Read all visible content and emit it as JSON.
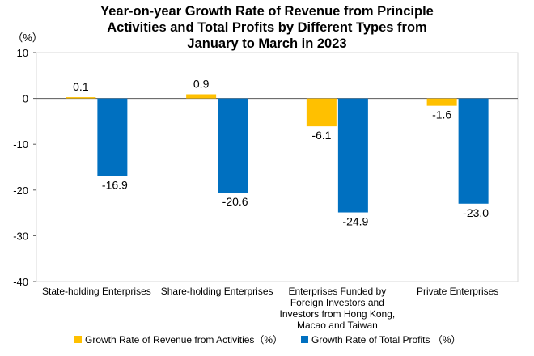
{
  "chart_data": {
    "type": "bar",
    "title_lines": [
      "Year-on-year Growth Rate of Revenue from Principle",
      "Activities and Total Profits by Different Types from",
      "January to March in 2023"
    ],
    "unit_label": "（%）",
    "categories": [
      [
        "State-holding Enterprises"
      ],
      [
        "Share-holding Enterprises"
      ],
      [
        "Enterprises Funded by",
        "Foreign Investors and",
        "Investors from Hong Kong,",
        "Macao and Taiwan"
      ],
      [
        "Private Enterprises"
      ]
    ],
    "series": [
      {
        "name": "Growth Rate of Revenue from Activities（%）",
        "values": [
          0.1,
          0.9,
          -6.1,
          -1.6
        ],
        "color": "#FFC000"
      },
      {
        "name": "Growth Rate of Total Profits （%）",
        "values": [
          -16.9,
          -20.6,
          -24.9,
          -23.0
        ],
        "color": "#0070C0"
      }
    ],
    "value_labels": [
      [
        "0.1",
        "0.9",
        "-6.1",
        "-1.6"
      ],
      [
        "-16.9",
        "-20.6",
        "-24.9",
        "-23.0"
      ]
    ],
    "ylim": [
      -40,
      10
    ],
    "yticks": [
      10,
      0,
      -10,
      -20,
      -30,
      -40
    ],
    "grid": false,
    "legend_position": "bottom"
  }
}
